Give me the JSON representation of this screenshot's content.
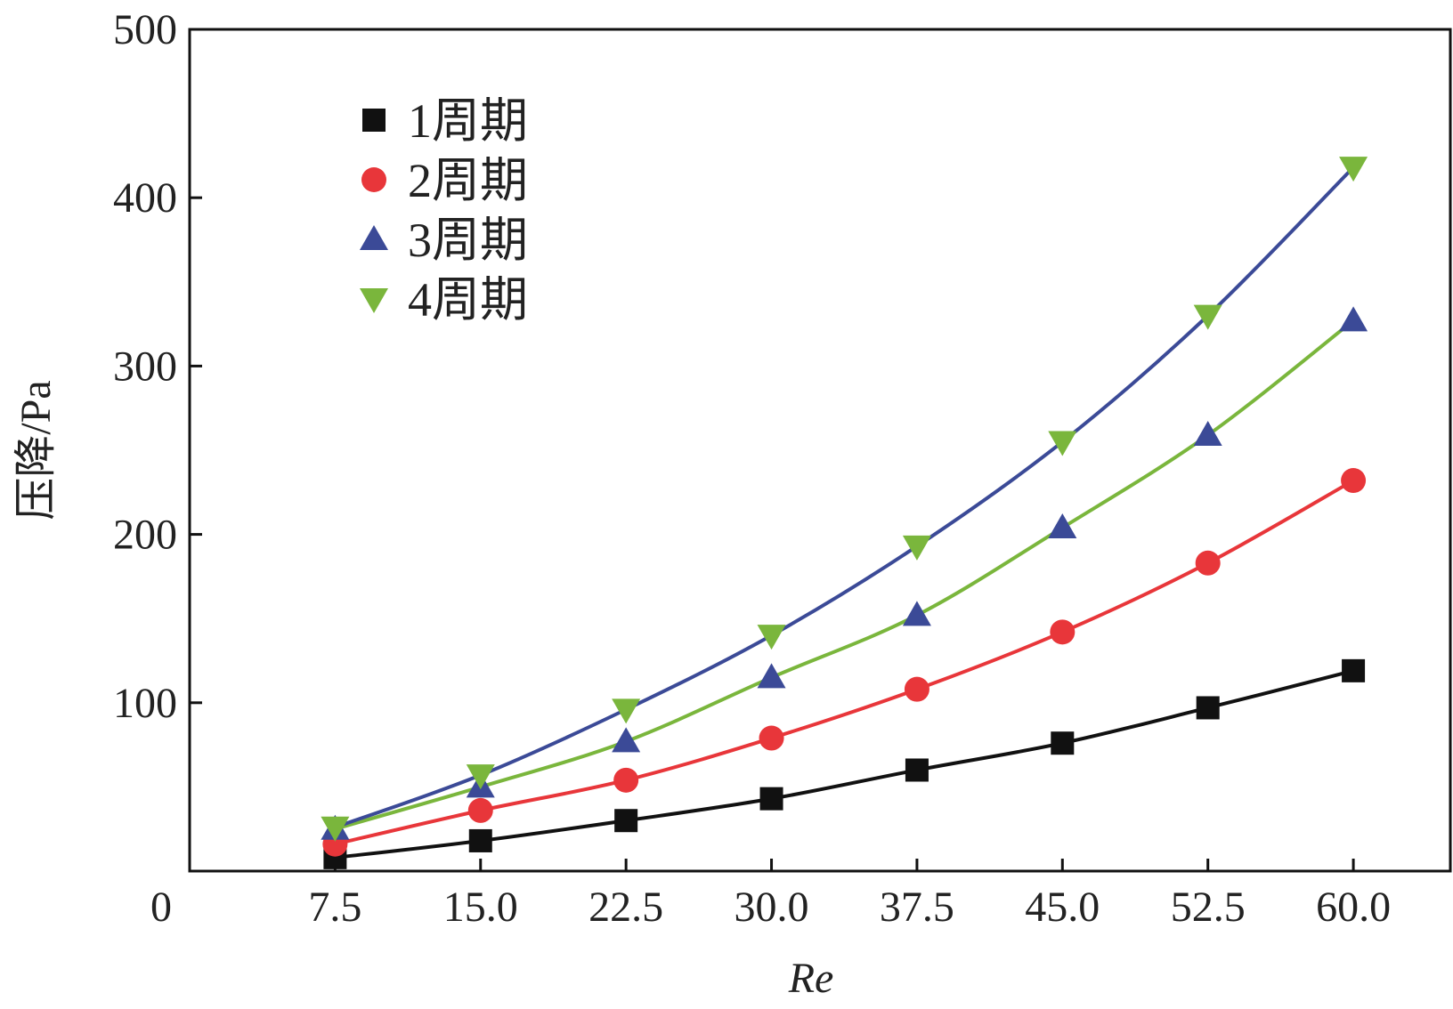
{
  "chart_data": {
    "type": "line",
    "xlabel": "Re",
    "ylabel": "压降/Pa",
    "xlim": [
      0,
      65.0
    ],
    "ylim": [
      0,
      500
    ],
    "x_origin_label": "0",
    "x_ticks": [
      "7.5",
      "15.0",
      "22.5",
      "30.0",
      "37.5",
      "45.0",
      "52.5",
      "60.0"
    ],
    "y_ticks": [
      "100",
      "200",
      "300",
      "400",
      "500"
    ],
    "x": [
      7.5,
      15.0,
      22.5,
      30.0,
      37.5,
      45.0,
      52.5,
      60.0
    ],
    "grid": false,
    "legend_position": "top-left",
    "series": [
      {
        "name": "1周期",
        "marker": "square",
        "color": "#111111",
        "values": [
          8,
          18,
          30,
          43,
          60,
          76,
          97,
          119
        ]
      },
      {
        "name": "2周期",
        "marker": "circle",
        "color": "#e8363a",
        "values": [
          16,
          36,
          54,
          79,
          108,
          142,
          183,
          232
        ]
      },
      {
        "name": "3周期",
        "marker": "triangle-up",
        "color": "#3b4a97",
        "values": [
          25,
          50,
          77,
          115,
          152,
          204,
          259,
          327
        ]
      },
      {
        "name": "4周期",
        "marker": "triangle-down",
        "color": "#7ab63c",
        "values": [
          26,
          57,
          96,
          140,
          193,
          255,
          330,
          418
        ]
      }
    ]
  }
}
